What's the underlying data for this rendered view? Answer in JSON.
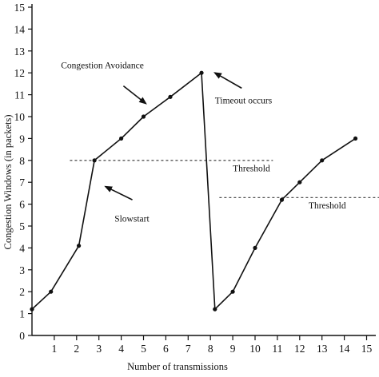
{
  "colors": {
    "line": "#111111",
    "axis": "#111111",
    "threshold": "#555555",
    "background": "#ffffff"
  },
  "chart_data": {
    "type": "line",
    "title": "",
    "xlabel": "Number of transmissions",
    "ylabel": "Congestion Windows (in packets)",
    "xlim": [
      0,
      15
    ],
    "ylim": [
      0,
      15
    ],
    "xticks": [
      "1",
      "2",
      "3",
      "4",
      "5",
      "6",
      "7",
      "8",
      "9",
      "10",
      "11",
      "12",
      "13",
      "14",
      "15"
    ],
    "yticks": [
      "0",
      "1",
      "2",
      "3",
      "4",
      "5",
      "6",
      "7",
      "8",
      "9",
      "10",
      "11",
      "12",
      "13",
      "14",
      "15"
    ],
    "grid": false,
    "legend": "none",
    "series": [
      {
        "points": [
          [
            0,
            1.2
          ],
          [
            0.85,
            2.0
          ],
          [
            2.1,
            4.1
          ],
          [
            2.8,
            8.0
          ],
          [
            4.0,
            9.0
          ],
          [
            5.0,
            10.0
          ],
          [
            6.2,
            10.9
          ],
          [
            7.6,
            12.0
          ],
          [
            8.2,
            1.2
          ],
          [
            9.0,
            2.0
          ],
          [
            10.0,
            4.0
          ],
          [
            11.2,
            6.2
          ],
          [
            12.0,
            7.0
          ],
          [
            13.0,
            8.0
          ],
          [
            14.5,
            9.0
          ]
        ]
      }
    ],
    "thresholds": [
      {
        "y": 8.0,
        "x": [
          1.7,
          10.8
        ]
      },
      {
        "y": 6.3,
        "x": [
          8.4,
          15.7
        ]
      }
    ],
    "annotations": [
      {
        "text": "Congestion Avoidance",
        "x": 1.3,
        "y": 12.2,
        "arrow_from": [
          4.1,
          11.4
        ],
        "arrow_to": [
          5.1,
          10.6
        ]
      },
      {
        "text": "Timeout occurs",
        "x": 8.2,
        "y": 10.6,
        "arrow_from": [
          9.4,
          11.3
        ],
        "arrow_to": [
          8.2,
          12.0
        ]
      },
      {
        "text": "Threshold",
        "x": 9.0,
        "y": 7.5
      },
      {
        "text": "Slowstart",
        "x": 3.7,
        "y": 5.2,
        "arrow_from": [
          4.5,
          6.2
        ],
        "arrow_to": [
          3.3,
          6.8
        ]
      },
      {
        "text": "Threshold",
        "x": 12.4,
        "y": 5.8
      }
    ]
  }
}
